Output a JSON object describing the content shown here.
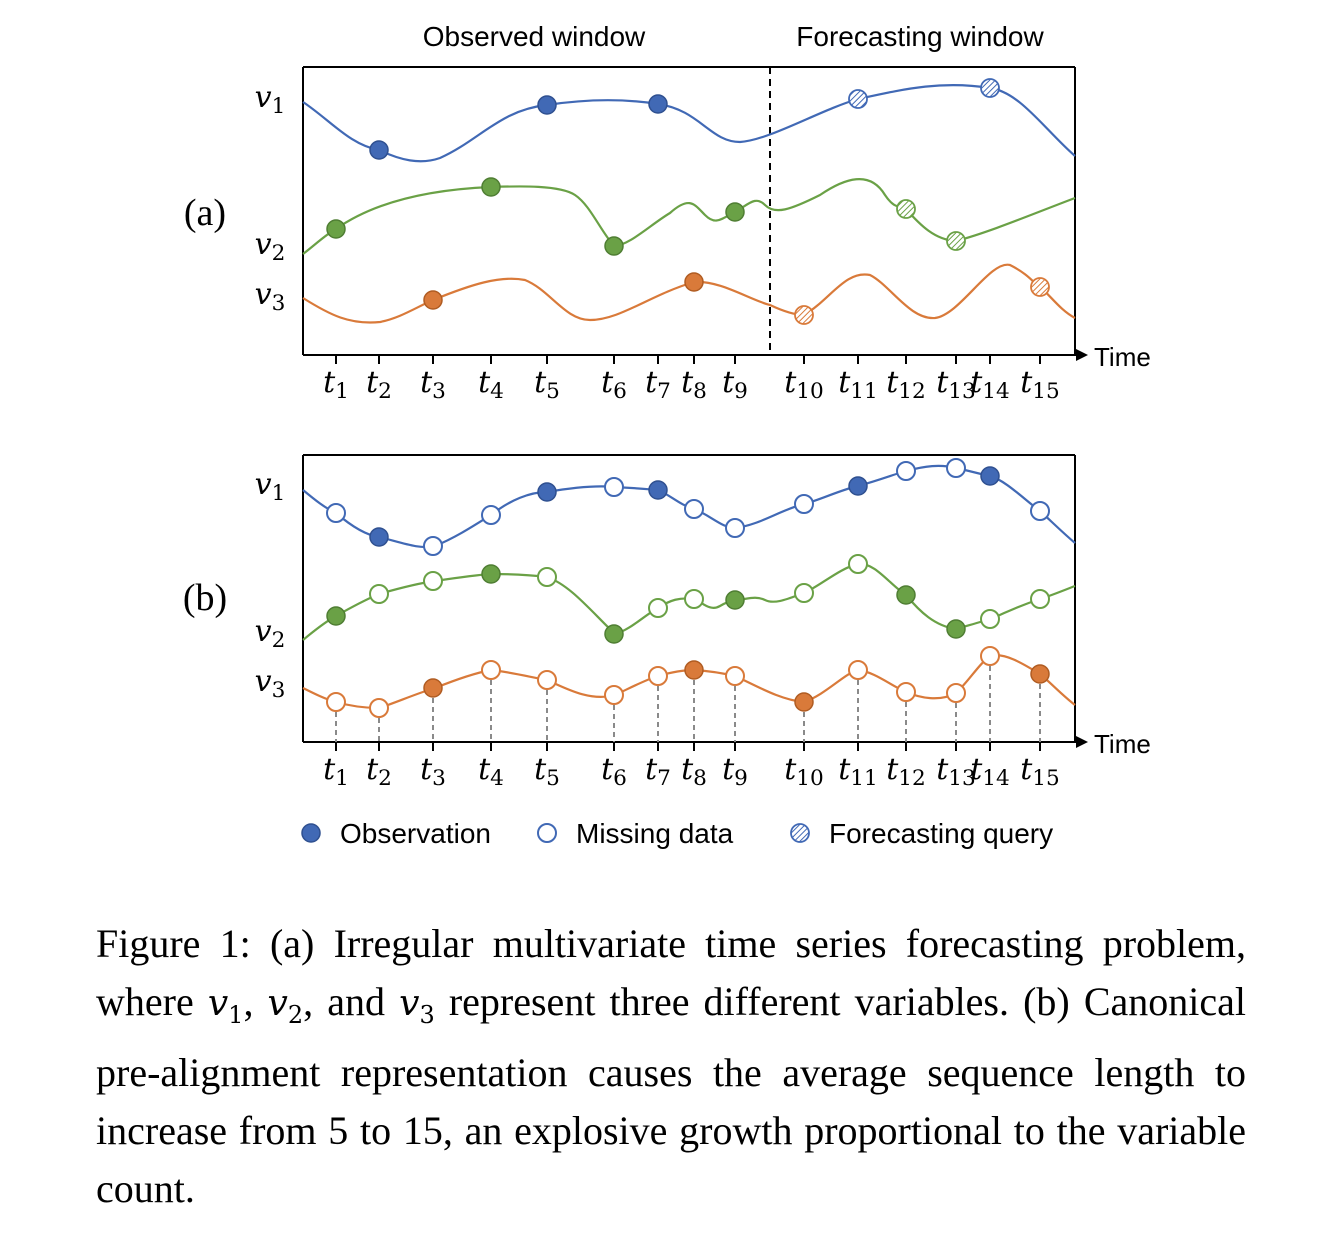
{
  "panels": [
    {
      "label": "(a)",
      "window_labels": {
        "observed": "Observed window",
        "forecast": "Forecasting window"
      },
      "axis_label": "Time",
      "variables": [
        {
          "name": "v",
          "index": "1",
          "color": "#4169b5"
        },
        {
          "name": "v",
          "index": "2",
          "color": "#6aa146"
        },
        {
          "name": "v",
          "index": "3",
          "color": "#d97a3a"
        }
      ],
      "points": [
        {
          "var": 0,
          "t": 2,
          "kind": "observation"
        },
        {
          "var": 0,
          "t": 5,
          "kind": "observation"
        },
        {
          "var": 0,
          "t": 7,
          "kind": "observation"
        },
        {
          "var": 0,
          "t": 11,
          "kind": "forecast"
        },
        {
          "var": 0,
          "t": 14,
          "kind": "forecast"
        },
        {
          "var": 1,
          "t": 1,
          "kind": "observation"
        },
        {
          "var": 1,
          "t": 4,
          "kind": "observation"
        },
        {
          "var": 1,
          "t": 6,
          "kind": "observation"
        },
        {
          "var": 1,
          "t": 9,
          "kind": "observation"
        },
        {
          "var": 1,
          "t": 12,
          "kind": "forecast"
        },
        {
          "var": 1,
          "t": 13,
          "kind": "forecast"
        },
        {
          "var": 2,
          "t": 3,
          "kind": "observation"
        },
        {
          "var": 2,
          "t": 8,
          "kind": "observation"
        },
        {
          "var": 2,
          "t": 10,
          "kind": "forecast"
        },
        {
          "var": 2,
          "t": 15,
          "kind": "forecast"
        }
      ]
    },
    {
      "label": "(b)",
      "axis_label": "Time",
      "variables": [
        {
          "name": "v",
          "index": "1",
          "color": "#4169b5"
        },
        {
          "name": "v",
          "index": "2",
          "color": "#6aa146"
        },
        {
          "name": "v",
          "index": "3",
          "color": "#d97a3a"
        }
      ],
      "observed_times": [
        [
          2,
          5,
          7,
          11,
          14
        ],
        [
          1,
          4,
          6,
          9,
          12,
          13
        ],
        [
          3,
          8,
          10,
          15
        ]
      ]
    }
  ],
  "ticks": [
    {
      "t": "t",
      "sub": "1"
    },
    {
      "t": "t",
      "sub": "2"
    },
    {
      "t": "t",
      "sub": "3"
    },
    {
      "t": "t",
      "sub": "4"
    },
    {
      "t": "t",
      "sub": "5"
    },
    {
      "t": "t",
      "sub": "6"
    },
    {
      "t": "t",
      "sub": "7"
    },
    {
      "t": "t",
      "sub": "8"
    },
    {
      "t": "t",
      "sub": "9"
    },
    {
      "t": "t",
      "sub": "10"
    },
    {
      "t": "t",
      "sub": "11"
    },
    {
      "t": "t",
      "sub": "12"
    },
    {
      "t": "t",
      "sub": "13"
    },
    {
      "t": "t",
      "sub": "14"
    },
    {
      "t": "t",
      "sub": "15"
    }
  ],
  "legend": {
    "observation": "Observation",
    "missing": "Missing data",
    "forecast": "Forecasting query"
  },
  "caption": {
    "prefix": "Figure 1: (a) Irregular multivariate time series forecasting problem, where ",
    "v1": "v",
    "v1_sub": "1",
    "sep1": ", ",
    "v2": "v",
    "v2_sub": "2",
    "sep2": ", and ",
    "v3": "v",
    "v3_sub": "3",
    "rest": " represent three different variables. (b) Canonical pre-alignment representation causes the average sequence length to increase from 5 to 15, an explosive growth proportional to the variable count."
  }
}
